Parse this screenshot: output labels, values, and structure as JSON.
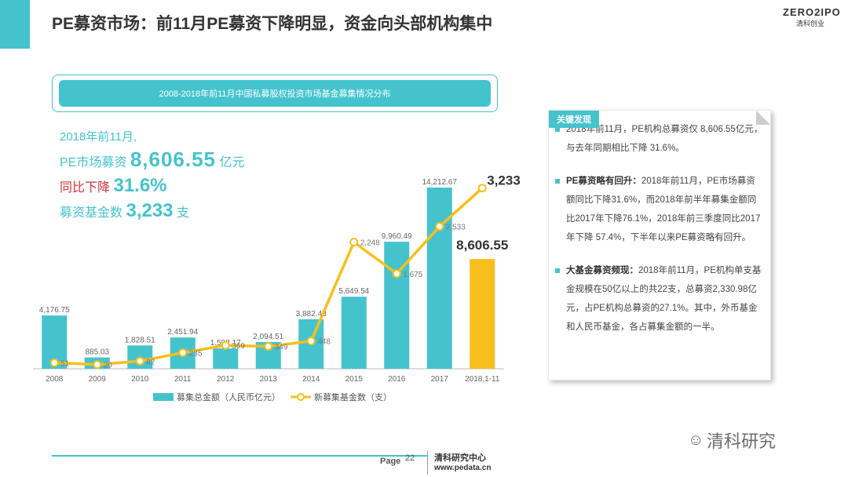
{
  "header": {
    "title": "PE募资市场：前11月PE募资下降明显，资金向头部机构集中",
    "logo_top": "ZERO2IPO",
    "logo_bottom": "清科创业"
  },
  "banner": {
    "label": "2008-2018年前11月中国私募股权投资市场基金募集情况分布"
  },
  "stats": {
    "line1": "2018年前11月,",
    "raise_label": "PE市场募资",
    "raise_value": "8,606.55",
    "raise_unit": "亿元",
    "yoy_label": "同比下降",
    "yoy_value": "31.6%",
    "funds_label": "募资基金数",
    "funds_value": "3,233",
    "funds_unit": "支"
  },
  "chart_data": {
    "type": "bar+line",
    "categories": [
      "2008",
      "2009",
      "2010",
      "2011",
      "2012",
      "2013",
      "2014",
      "2015",
      "2016",
      "2017",
      "2018.1-11"
    ],
    "series": [
      {
        "name": "募集总金额（人民币亿元）",
        "type": "bar",
        "values": [
          4176.75,
          885.03,
          1828.51,
          2451.94,
          1592.17,
          2094.51,
          3882.43,
          5649.54,
          9960.49,
          14212.67,
          8606.55
        ],
        "labels": [
          "4,176.75",
          "885.03",
          "1,828.51",
          "2,451.94",
          "1,592.17",
          "2,094.51",
          "3,882.43",
          "5,649.54",
          "9,960.49",
          "14,212.67",
          "8,606.55"
        ],
        "color": "#45c3cd",
        "highlight_color": "#f7bf1d"
      },
      {
        "name": "新募集基金数（支）",
        "type": "line",
        "values": [
          51,
          20,
          82,
          235,
          369,
          349,
          448,
          2248,
          1675,
          2533,
          3233
        ],
        "labels": [
          "51",
          "20",
          "82",
          "235",
          "369",
          "349",
          "448",
          "2,248",
          "1,675",
          "2,533",
          "3,233"
        ],
        "color": "#f7bf1d"
      }
    ],
    "bar_ylim": [
      0,
      16000
    ],
    "line_ylim": [
      0,
      3600
    ]
  },
  "panel": {
    "tab": "关键发现",
    "items": [
      {
        "lead": "",
        "text": "2018年前11月，PE机构总募资仅 8,606.55亿元，与去年同期相比下降 31.6%。"
      },
      {
        "lead": "PE募资略有回升：",
        "text": "2018年前11月，PE市场募资额同比下降31.6%，而2018年前半年募集金额同比2017年下降76.1%，2018年前三季度同比2017年下降 57.4%，下半年以来PE募资略有回升。"
      },
      {
        "lead": "大基金募资频现：",
        "text": "2018年前11月，PE机构单支基金规模在50亿以上的共22支，总募资2,330.98亿元，占PE机构总募资的27.1%。其中，外币基金和人民币基金，各占募集金额的一半。"
      }
    ]
  },
  "footer": {
    "page_label": "Page",
    "page_number": "22",
    "org": "清科研究中心",
    "site": "www.pedata.cn",
    "watermark": "清科研究"
  }
}
